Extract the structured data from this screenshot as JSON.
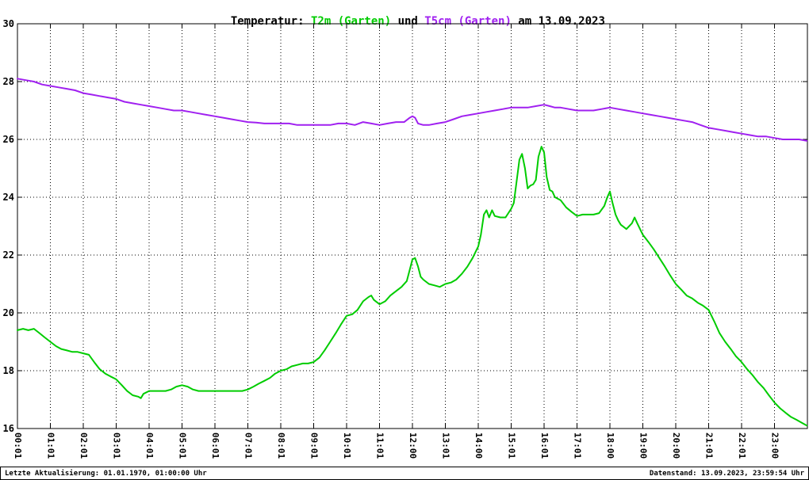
{
  "title": {
    "prefix": "Temperatur: ",
    "series1": "T2m (Garten)",
    "connector": " und ",
    "series2": "T5cm (Garten)",
    "suffix": " am 13.09.2023"
  },
  "footer": {
    "left": "Letzte Aktualisierung: 01.01.1970, 01:00:00 Uhr",
    "right": "Datenstand: 13.09.2023, 23:59:54 Uhr"
  },
  "colors": {
    "t2m": "#00cc00",
    "t5cm": "#a020f0",
    "grid": "#000000",
    "axis": "#000000",
    "background": "#ffffff"
  },
  "chart_data": {
    "type": "line",
    "title": "Temperatur: T2m (Garten) und T5cm (Garten) am 13.09.2023",
    "xlabel": "",
    "ylabel": "",
    "grid": true,
    "legend_position": "in-title",
    "ylim": [
      16,
      30
    ],
    "xlim_hours": [
      0,
      24
    ],
    "y_tick_values": [
      30,
      28,
      26,
      24,
      22,
      20,
      18,
      16
    ],
    "x_tick_hours": [
      0,
      1,
      2,
      3,
      4,
      5,
      6,
      7,
      8,
      9,
      10,
      11,
      12,
      13,
      14,
      15,
      16,
      17,
      18,
      19,
      20,
      21,
      22,
      23
    ],
    "x_tick_labels": [
      "00:01",
      "01:01",
      "02:01",
      "03:01",
      "04:01",
      "05:01",
      "06:01",
      "07:01",
      "08:01",
      "09:01",
      "10:01",
      "11:01",
      "12:00",
      "13:01",
      "14:00",
      "15:01",
      "16:01",
      "17:01",
      "18:00",
      "19:00",
      "20:00",
      "21:01",
      "22:01",
      "23:00"
    ],
    "series": [
      {
        "name": "T2m (Garten)",
        "color": "#00cc00",
        "x": [
          0.0,
          0.17,
          0.33,
          0.5,
          0.67,
          0.83,
          1.0,
          1.17,
          1.33,
          1.5,
          1.67,
          1.83,
          2.0,
          2.17,
          2.33,
          2.5,
          2.67,
          2.83,
          3.0,
          3.17,
          3.33,
          3.5,
          3.67,
          3.75,
          3.83,
          4.0,
          4.17,
          4.33,
          4.5,
          4.67,
          4.83,
          5.0,
          5.17,
          5.33,
          5.5,
          5.67,
          5.83,
          6.0,
          6.17,
          6.33,
          6.5,
          6.67,
          6.83,
          7.0,
          7.17,
          7.33,
          7.5,
          7.67,
          7.83,
          8.0,
          8.17,
          8.33,
          8.5,
          8.67,
          8.83,
          9.0,
          9.17,
          9.33,
          9.5,
          9.67,
          9.83,
          10.0,
          10.17,
          10.33,
          10.5,
          10.67,
          10.75,
          10.83,
          11.0,
          11.17,
          11.33,
          11.5,
          11.67,
          11.83,
          11.92,
          12.0,
          12.08,
          12.17,
          12.25,
          12.33,
          12.5,
          12.67,
          12.83,
          13.0,
          13.17,
          13.33,
          13.5,
          13.67,
          13.83,
          14.0,
          14.08,
          14.17,
          14.25,
          14.33,
          14.42,
          14.5,
          14.67,
          14.83,
          15.0,
          15.08,
          15.17,
          15.25,
          15.33,
          15.42,
          15.5,
          15.58,
          15.67,
          15.75,
          15.83,
          15.92,
          16.0,
          16.08,
          16.17,
          16.25,
          16.33,
          16.5,
          16.67,
          16.83,
          17.0,
          17.17,
          17.33,
          17.5,
          17.67,
          17.83,
          17.92,
          18.0,
          18.08,
          18.17,
          18.25,
          18.33,
          18.5,
          18.67,
          18.75,
          18.83,
          19.0,
          19.17,
          19.33,
          19.5,
          19.67,
          19.83,
          20.0,
          20.17,
          20.33,
          20.5,
          20.67,
          20.83,
          21.0,
          21.17,
          21.33,
          21.5,
          21.67,
          21.83,
          22.0,
          22.17,
          22.33,
          22.5,
          22.67,
          22.83,
          23.0,
          23.17,
          23.33,
          23.5,
          23.67,
          23.83,
          23.98
        ],
        "y": [
          19.4,
          19.45,
          19.4,
          19.45,
          19.3,
          19.15,
          19.0,
          18.85,
          18.75,
          18.7,
          18.65,
          18.65,
          18.6,
          18.55,
          18.3,
          18.05,
          17.9,
          17.8,
          17.7,
          17.5,
          17.3,
          17.15,
          17.1,
          17.05,
          17.2,
          17.3,
          17.3,
          17.3,
          17.3,
          17.35,
          17.45,
          17.5,
          17.45,
          17.35,
          17.3,
          17.3,
          17.3,
          17.3,
          17.3,
          17.3,
          17.3,
          17.3,
          17.3,
          17.35,
          17.45,
          17.55,
          17.65,
          17.75,
          17.9,
          18.0,
          18.05,
          18.15,
          18.2,
          18.25,
          18.25,
          18.3,
          18.45,
          18.7,
          19.0,
          19.3,
          19.6,
          19.9,
          19.95,
          20.1,
          20.4,
          20.55,
          20.6,
          20.45,
          20.3,
          20.4,
          20.6,
          20.75,
          20.9,
          21.1,
          21.5,
          21.85,
          21.9,
          21.6,
          21.25,
          21.15,
          21.0,
          20.95,
          20.9,
          21.0,
          21.05,
          21.15,
          21.35,
          21.6,
          21.9,
          22.3,
          22.7,
          23.4,
          23.55,
          23.3,
          23.55,
          23.35,
          23.3,
          23.3,
          23.6,
          23.8,
          24.6,
          25.3,
          25.5,
          25.0,
          24.3,
          24.4,
          24.45,
          24.6,
          25.4,
          25.75,
          25.55,
          24.7,
          24.25,
          24.2,
          24.0,
          23.9,
          23.65,
          23.5,
          23.35,
          23.4,
          23.4,
          23.4,
          23.45,
          23.7,
          24.0,
          24.2,
          23.8,
          23.4,
          23.2,
          23.05,
          22.9,
          23.1,
          23.3,
          23.1,
          22.7,
          22.45,
          22.2,
          21.9,
          21.6,
          21.3,
          21.0,
          20.8,
          20.6,
          20.5,
          20.35,
          20.25,
          20.1,
          19.7,
          19.3,
          19.0,
          18.75,
          18.5,
          18.3,
          18.05,
          17.85,
          17.6,
          17.4,
          17.15,
          16.9,
          16.7,
          16.55,
          16.4,
          16.3,
          16.2,
          16.1
        ]
      },
      {
        "name": "T5cm (Garten)",
        "color": "#a020f0",
        "x": [
          0.0,
          0.25,
          0.5,
          0.75,
          1.0,
          1.25,
          1.5,
          1.75,
          2.0,
          2.25,
          2.5,
          2.75,
          3.0,
          3.25,
          3.5,
          3.75,
          4.0,
          4.25,
          4.5,
          4.75,
          5.0,
          5.25,
          5.5,
          5.75,
          6.0,
          6.25,
          6.5,
          6.75,
          7.0,
          7.25,
          7.5,
          7.75,
          8.0,
          8.25,
          8.5,
          8.75,
          9.0,
          9.25,
          9.5,
          9.75,
          10.0,
          10.25,
          10.5,
          10.75,
          11.0,
          11.25,
          11.5,
          11.75,
          11.92,
          12.0,
          12.08,
          12.17,
          12.33,
          12.5,
          12.75,
          13.0,
          13.25,
          13.5,
          13.75,
          14.0,
          14.25,
          14.5,
          14.75,
          15.0,
          15.25,
          15.5,
          15.75,
          16.0,
          16.17,
          16.33,
          16.5,
          16.75,
          17.0,
          17.25,
          17.5,
          17.75,
          18.0,
          18.25,
          18.5,
          18.75,
          19.0,
          19.25,
          19.5,
          19.75,
          20.0,
          20.25,
          20.5,
          20.75,
          21.0,
          21.25,
          21.5,
          21.75,
          22.0,
          22.25,
          22.5,
          22.75,
          23.0,
          23.25,
          23.5,
          23.75,
          23.98
        ],
        "y": [
          28.1,
          28.05,
          28.0,
          27.9,
          27.85,
          27.8,
          27.75,
          27.7,
          27.6,
          27.55,
          27.5,
          27.45,
          27.4,
          27.3,
          27.25,
          27.2,
          27.15,
          27.1,
          27.05,
          27.0,
          27.0,
          26.95,
          26.9,
          26.85,
          26.8,
          26.75,
          26.7,
          26.65,
          26.6,
          26.58,
          26.55,
          26.55,
          26.55,
          26.55,
          26.5,
          26.5,
          26.5,
          26.5,
          26.5,
          26.55,
          26.55,
          26.5,
          26.6,
          26.55,
          26.5,
          26.55,
          26.6,
          26.6,
          26.75,
          26.8,
          26.75,
          26.55,
          26.5,
          26.5,
          26.55,
          26.6,
          26.7,
          26.8,
          26.85,
          26.9,
          26.95,
          27.0,
          27.05,
          27.1,
          27.1,
          27.1,
          27.15,
          27.2,
          27.15,
          27.1,
          27.1,
          27.05,
          27.0,
          27.0,
          27.0,
          27.05,
          27.1,
          27.05,
          27.0,
          26.95,
          26.9,
          26.85,
          26.8,
          26.75,
          26.7,
          26.65,
          26.6,
          26.5,
          26.4,
          26.35,
          26.3,
          26.25,
          26.2,
          26.15,
          26.1,
          26.1,
          26.05,
          26.0,
          26.0,
          26.0,
          25.95
        ]
      }
    ]
  }
}
